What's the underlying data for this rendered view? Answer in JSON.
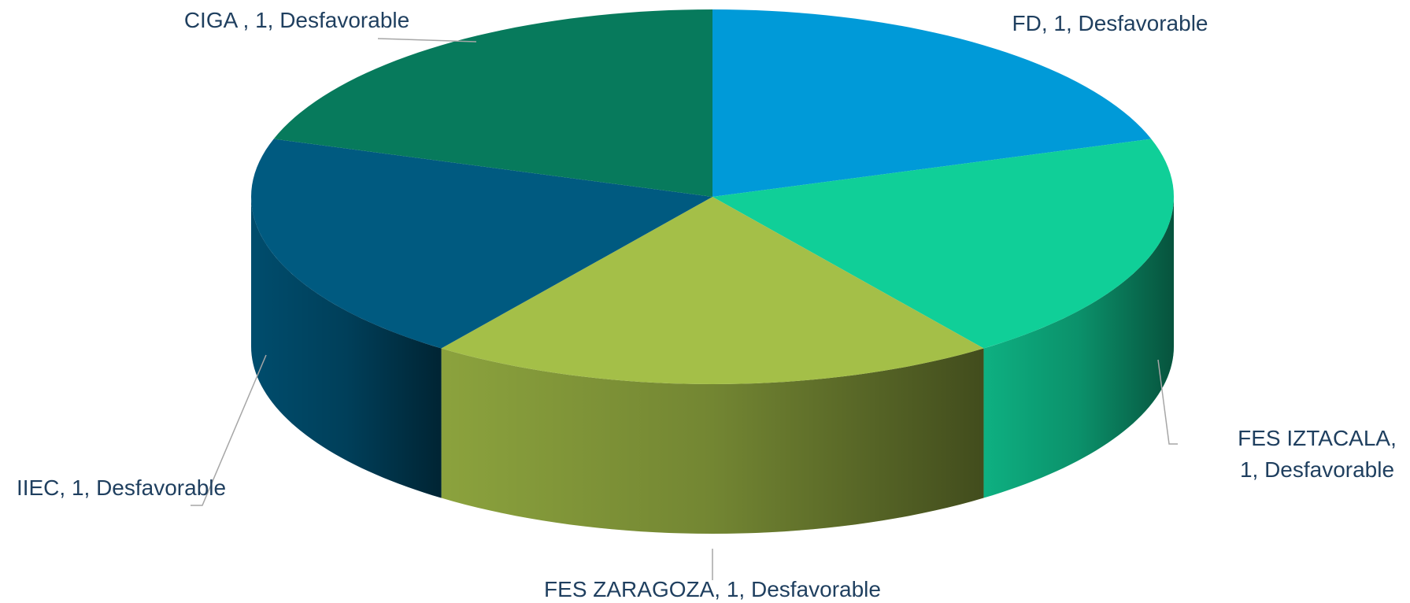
{
  "chart_data": {
    "type": "pie3d",
    "values": [
      1,
      1,
      1,
      1,
      1
    ],
    "value_labels": [
      "FD, 1, Desfavorable",
      "FES IZTACALA, 1, Desfavorable",
      "FES ZARAGOZA, 1, Desfavorable",
      "IIEC, 1, Desfavorable",
      "CIGA , 1, Desfavorable"
    ],
    "colors": [
      "#009ad8",
      "#10cf98",
      "#a4bf48",
      "#005a80",
      "#077a5c"
    ]
  }
}
